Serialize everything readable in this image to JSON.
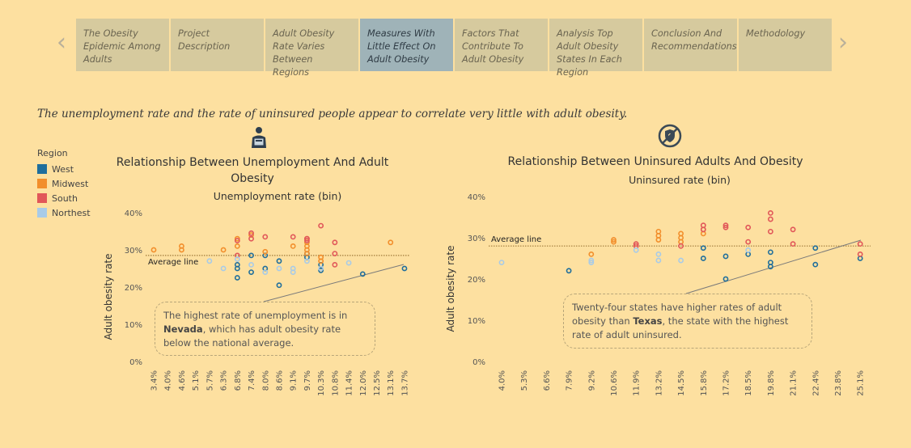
{
  "nav": {
    "prev_icon": "chevron-left-icon",
    "next_icon": "chevron-right-icon",
    "tabs": [
      {
        "label": "The Obesity Epidemic Among Adults",
        "active": false
      },
      {
        "label": "Project Description",
        "active": false
      },
      {
        "label": "Adult Obesity Rate Varies Between Regions",
        "active": false
      },
      {
        "label": "Measures With Little Effect On Adult Obesity",
        "active": true
      },
      {
        "label": "Factors That Contribute To Adult Obesity",
        "active": false
      },
      {
        "label": "Analysis Top Adult Obesity States In Each Region",
        "active": false
      },
      {
        "label": "Conclusion And Recommendations",
        "active": false
      },
      {
        "label": "Methodology",
        "active": false
      }
    ]
  },
  "caption": "The unemployment rate and the rate of uninsured people appear to correlate very little with adult obesity.",
  "legend": {
    "title": "Region",
    "items": [
      {
        "label": "West",
        "color": "#1f6e9c"
      },
      {
        "label": "Midwest",
        "color": "#f28e2b"
      },
      {
        "label": "South",
        "color": "#e15759"
      },
      {
        "label": "Northest",
        "color": "#a8cbe8"
      }
    ]
  },
  "chart_data": [
    {
      "type": "scatter",
      "title": "Relationship Between Unemployment And Adult Obesity",
      "xlabel": "Unemployment rate (bin)",
      "ylabel": "Adult obesity rate",
      "icon": "worker-icon",
      "categories": [
        "3.4%",
        "4.0%",
        "4.6%",
        "5.1%",
        "5.7%",
        "6.3%",
        "6.8%",
        "7.4%",
        "8.0%",
        "8.6%",
        "9.1%",
        "9.7%",
        "10.3%",
        "10.8%",
        "11.4%",
        "12.0%",
        "12.5%",
        "13.1%",
        "13.7%"
      ],
      "yticks": [
        "0%",
        "10%",
        "20%",
        "30%",
        "40%"
      ],
      "ylim": [
        0,
        40
      ],
      "average": {
        "label": "Average line",
        "value": 28.5
      },
      "annotation": {
        "pre": "The highest rate of unemployment is in ",
        "bold": "Nevada",
        "post": ", which has adult obesity rate below the national average."
      },
      "series": [
        {
          "name": "West",
          "points": [
            [
              6,
              26
            ],
            [
              6,
              25
            ],
            [
              6,
              22.5
            ],
            [
              7,
              28.5
            ],
            [
              7,
              24
            ],
            [
              8,
              25
            ],
            [
              8,
              28.5
            ],
            [
              9,
              27
            ],
            [
              9,
              20.5
            ],
            [
              11,
              28
            ],
            [
              11,
              29
            ],
            [
              12,
              24.5
            ],
            [
              12,
              26
            ],
            [
              15,
              23.5
            ],
            [
              18,
              25
            ]
          ]
        },
        {
          "name": "Midwest",
          "points": [
            [
              0,
              30
            ],
            [
              2,
              30
            ],
            [
              2,
              31
            ],
            [
              5,
              30
            ],
            [
              6,
              31
            ],
            [
              6,
              33
            ],
            [
              7,
              34
            ],
            [
              8,
              29.5
            ],
            [
              10,
              31
            ],
            [
              11,
              29
            ],
            [
              11,
              30
            ],
            [
              11,
              31
            ],
            [
              11,
              32
            ],
            [
              11,
              33
            ],
            [
              12,
              28
            ],
            [
              12,
              27
            ],
            [
              17,
              32
            ]
          ]
        },
        {
          "name": "South",
          "points": [
            [
              6,
              28.5
            ],
            [
              6,
              32.5
            ],
            [
              7,
              33
            ],
            [
              7,
              34.5
            ],
            [
              8,
              33.5
            ],
            [
              10,
              33.5
            ],
            [
              11,
              32.5
            ],
            [
              11,
              33
            ],
            [
              12,
              36.5
            ],
            [
              13,
              29
            ],
            [
              13,
              32
            ],
            [
              13,
              26
            ]
          ]
        },
        {
          "name": "Northest",
          "points": [
            [
              4,
              27
            ],
            [
              5,
              25
            ],
            [
              6,
              27.5
            ],
            [
              7,
              26
            ],
            [
              8,
              24
            ],
            [
              9,
              25
            ],
            [
              10,
              25
            ],
            [
              10,
              24
            ],
            [
              11,
              27
            ],
            [
              12,
              25
            ],
            [
              14,
              26.5
            ]
          ]
        }
      ]
    },
    {
      "type": "scatter",
      "title": "Relationship Between Uninsured Adults And Obesity",
      "xlabel": "Uninsured rate (bin)",
      "ylabel": "Adult obesity rate",
      "icon": "no-insurance-icon",
      "categories": [
        "4.0%",
        "5.3%",
        "6.6%",
        "7.9%",
        "9.2%",
        "10.6%",
        "11.9%",
        "13.2%",
        "14.5%",
        "15.8%",
        "17.2%",
        "18.5%",
        "19.8%",
        "21.1%",
        "22.4%",
        "23.8%",
        "25.1%"
      ],
      "yticks": [
        "0%",
        "10%",
        "20%",
        "30%",
        "40%"
      ],
      "ylim": [
        0,
        40
      ],
      "average": {
        "label": "Average line",
        "value": 28
      },
      "annotation": {
        "pre": "Twenty-four states have higher rates of adult obesity than ",
        "bold": "Texas",
        "post": ", the state with the highest rate of adult uninsured."
      },
      "series": [
        {
          "name": "West",
          "points": [
            [
              3,
              22
            ],
            [
              9,
              27.5
            ],
            [
              9,
              25
            ],
            [
              10,
              20
            ],
            [
              10,
              25.5
            ],
            [
              11,
              26
            ],
            [
              12,
              23
            ],
            [
              12,
              24
            ],
            [
              12,
              26.5
            ],
            [
              14,
              27.5
            ],
            [
              14,
              23.5
            ],
            [
              16,
              25
            ]
          ]
        },
        {
          "name": "Midwest",
          "points": [
            [
              4,
              26
            ],
            [
              5,
              29
            ],
            [
              5,
              29.5
            ],
            [
              7,
              29.5
            ],
            [
              7,
              30.5
            ],
            [
              7,
              31.5
            ],
            [
              8,
              29
            ],
            [
              8,
              30
            ],
            [
              8,
              31
            ],
            [
              9,
              31
            ],
            [
              9,
              32
            ]
          ]
        },
        {
          "name": "South",
          "points": [
            [
              6,
              28
            ],
            [
              6,
              28.5
            ],
            [
              8,
              28
            ],
            [
              9,
              32
            ],
            [
              9,
              33
            ],
            [
              10,
              33
            ],
            [
              10,
              32.5
            ],
            [
              11,
              29
            ],
            [
              11,
              32.5
            ],
            [
              12,
              31.5
            ],
            [
              12,
              34.5
            ],
            [
              12,
              36
            ],
            [
              13,
              28.5
            ],
            [
              13,
              32
            ],
            [
              16,
              28.5
            ],
            [
              16,
              26
            ]
          ]
        },
        {
          "name": "Northest",
          "points": [
            [
              0,
              24
            ],
            [
              4,
              24
            ],
            [
              4,
              24.5
            ],
            [
              6,
              27
            ],
            [
              7,
              26
            ],
            [
              7,
              24.5
            ],
            [
              8,
              24.5
            ],
            [
              11,
              27
            ]
          ]
        }
      ]
    }
  ]
}
